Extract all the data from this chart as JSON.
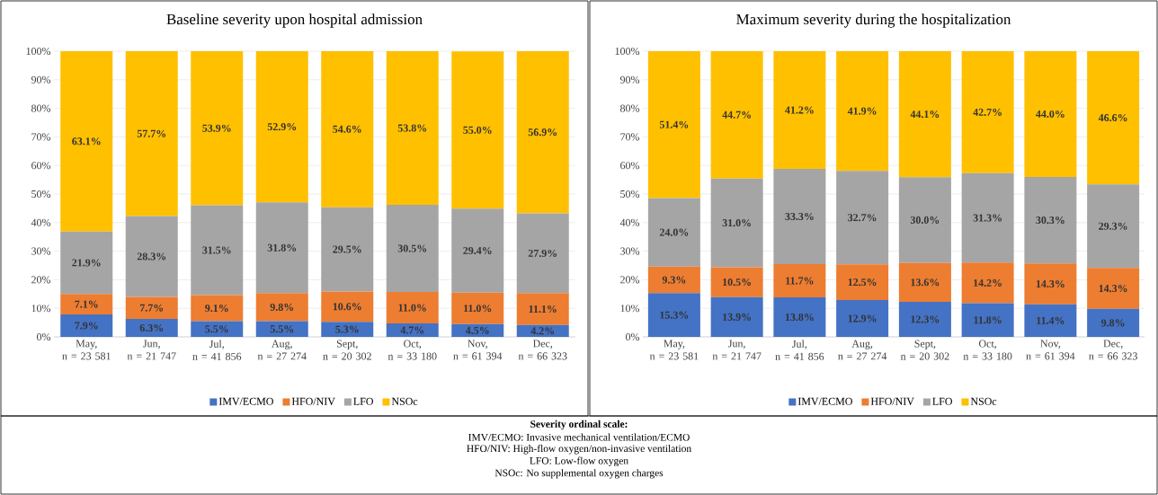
{
  "chart_data": [
    {
      "type": "bar",
      "stacked": true,
      "title": "Baseline severity upon hospital admission",
      "grid": "y",
      "legend": "bottom",
      "categories": [
        "May, n = 23 581",
        "Jun, n = 21 747",
        "Jul, n = 41 856",
        "Aug, n = 27 274",
        "Sept, n = 20 302",
        "Oct, n = 33 180",
        "Nov, n = 61 394",
        "Dec, n = 66 323"
      ],
      "ylim": [
        0,
        100
      ],
      "yticks": [
        {
          "value": 0,
          "label": "0%"
        },
        {
          "value": 10,
          "label": "10%"
        },
        {
          "value": 20,
          "label": "20%"
        },
        {
          "value": 30,
          "label": "30%"
        },
        {
          "value": 40,
          "label": "40%"
        },
        {
          "value": 50,
          "label": "50%"
        },
        {
          "value": 60,
          "label": "60%"
        },
        {
          "value": 70,
          "label": "70%"
        },
        {
          "value": 80,
          "label": "80%"
        },
        {
          "value": 90,
          "label": "90%"
        },
        {
          "value": 100,
          "label": "100%"
        }
      ],
      "series": [
        {
          "name": "IMV/ECMO",
          "color": "#4472c4",
          "values": [
            7.9,
            6.3,
            5.5,
            5.5,
            5.3,
            4.7,
            4.5,
            4.2
          ],
          "value_labels": [
            "7.9%",
            "6.3%",
            "5.5%",
            "5.5%",
            "5.3%",
            "4.7%",
            "4.5%",
            "4.2%"
          ]
        },
        {
          "name": "HFO/NIV",
          "color": "#ed7d31",
          "values": [
            7.1,
            7.7,
            9.1,
            9.8,
            10.6,
            11.0,
            11.0,
            11.1
          ],
          "value_labels": [
            "7.1%",
            "7.7%",
            "9.1%",
            "9.8%",
            "10.6%",
            "11.0%",
            "11.0%",
            "11.1%"
          ]
        },
        {
          "name": "LFO",
          "color": "#a5a5a5",
          "values": [
            21.9,
            28.3,
            31.5,
            31.8,
            29.5,
            30.5,
            29.4,
            27.9
          ],
          "value_labels": [
            "21.9%",
            "28.3%",
            "31.5%",
            "31.8%",
            "29.5%",
            "30.5%",
            "29.4%",
            "27.9%"
          ]
        },
        {
          "name": "NSOc",
          "color": "#ffc000",
          "values": [
            63.1,
            57.7,
            53.9,
            52.9,
            54.6,
            53.8,
            55.0,
            56.9
          ],
          "value_labels": [
            "63.1%",
            "57.7%",
            "53.9%",
            "52.9%",
            "54.6%",
            "53.8%",
            "55.0%",
            "56.9%"
          ]
        }
      ]
    },
    {
      "type": "bar",
      "stacked": true,
      "title": "Maximum severity during the hospitalization",
      "grid": "y",
      "legend": "bottom",
      "categories": [
        "May, n = 23 581",
        "Jun, n = 21 747",
        "Jul, n = 41 856",
        "Aug, n = 27 274",
        "Sept, n = 20 302",
        "Oct, n = 33 180",
        "Nov, n = 61 394",
        "Dec, n = 66 323"
      ],
      "ylim": [
        0,
        100
      ],
      "yticks": [
        {
          "value": 0,
          "label": "0%"
        },
        {
          "value": 10,
          "label": "10%"
        },
        {
          "value": 20,
          "label": "20%"
        },
        {
          "value": 30,
          "label": "30%"
        },
        {
          "value": 40,
          "label": "40%"
        },
        {
          "value": 50,
          "label": "50%"
        },
        {
          "value": 60,
          "label": "60%"
        },
        {
          "value": 70,
          "label": "70%"
        },
        {
          "value": 80,
          "label": "80%"
        },
        {
          "value": 90,
          "label": "90%"
        },
        {
          "value": 100,
          "label": "100%"
        }
      ],
      "series": [
        {
          "name": "IMV/ECMO",
          "color": "#4472c4",
          "values": [
            15.3,
            13.9,
            13.8,
            12.9,
            12.3,
            11.8,
            11.4,
            9.8
          ],
          "value_labels": [
            "15.3%",
            "13.9%",
            "13.8%",
            "12.9%",
            "12.3%",
            "11.8%",
            "11.4%",
            "9.8%"
          ]
        },
        {
          "name": "HFO/NIV",
          "color": "#ed7d31",
          "values": [
            9.3,
            10.5,
            11.7,
            12.5,
            13.6,
            14.2,
            14.3,
            14.3
          ],
          "value_labels": [
            "9.3%",
            "10.5%",
            "11.7%",
            "12.5%",
            "13.6%",
            "14.2%",
            "14.3%",
            "14.3%"
          ]
        },
        {
          "name": "LFO",
          "color": "#a5a5a5",
          "values": [
            24.0,
            31.0,
            33.3,
            32.7,
            30.0,
            31.3,
            30.3,
            29.3
          ],
          "value_labels": [
            "24.0%",
            "31.0%",
            "33.3%",
            "32.7%",
            "30.0%",
            "31.3%",
            "30.3%",
            "29.3%"
          ]
        },
        {
          "name": "NSOc",
          "color": "#ffc000",
          "values": [
            51.4,
            44.7,
            41.2,
            41.9,
            44.1,
            42.7,
            44.0,
            46.6
          ],
          "value_labels": [
            "51.4%",
            "44.7%",
            "41.2%",
            "41.9%",
            "44.1%",
            "42.7%",
            "44.0%",
            "46.6%"
          ]
        }
      ],
      "annotations": [
        "Severity ordinal scale:",
        "IMV/ECMO: Invasive mechanical ventilation/ECMO",
        "HFO/NIV: High-flow oxygen/non-invasive ventilation",
        "LFO: Low-flow oxygen",
        "NSOc: No supplemental oxygen charges"
      ]
    }
  ]
}
